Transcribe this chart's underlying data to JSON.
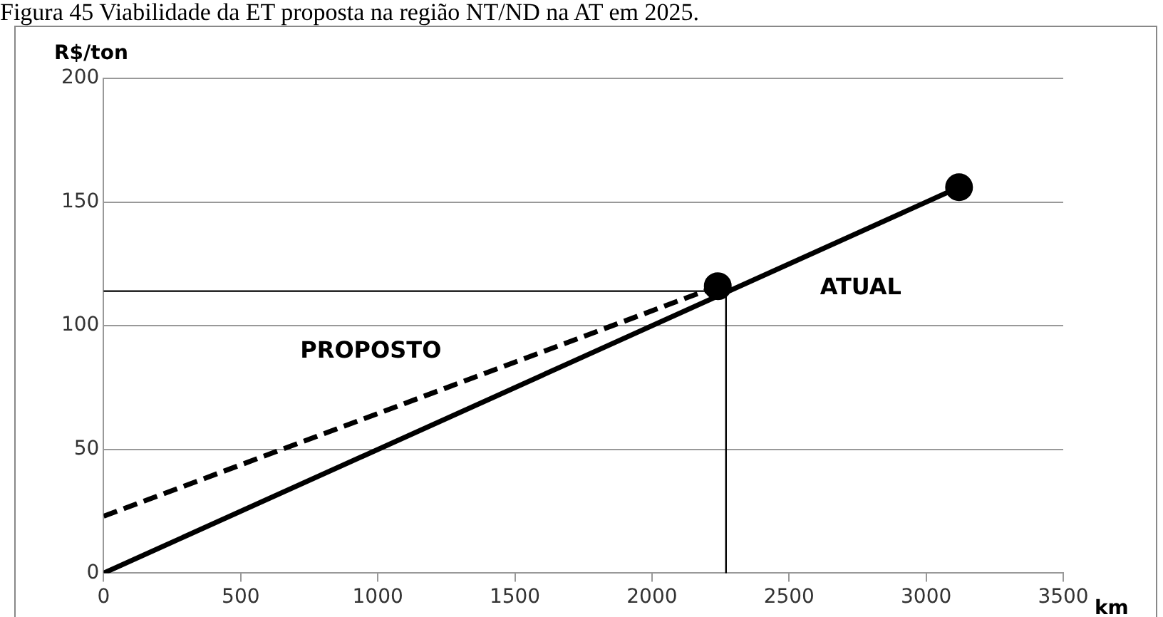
{
  "chart_data": {
    "type": "line",
    "title": "Figura 45 Viabilidade da ET proposta na região NT/ND na AT em 2025.",
    "xlabel": "km",
    "ylabel": "R$/ton",
    "series": [
      {
        "name": "ATUAL",
        "color": "#000000",
        "x": [
          0,
          3120
        ],
        "values": [
          0,
          156
        ],
        "line_style": "solid"
      },
      {
        "name": "PROPOSTO",
        "color": "#000000",
        "x": [
          0,
          2240
        ],
        "values": [
          23,
          116
        ],
        "line_style": "dashed"
      }
    ],
    "xlim": [
      0,
      3500
    ],
    "xticks": [
      0,
      500,
      1000,
      1500,
      2000,
      2500,
      3000,
      3500
    ],
    "ylim": [
      0,
      200
    ],
    "yticks": [
      0,
      50,
      100,
      150,
      200
    ],
    "ref_lines": [
      {
        "axis": "y",
        "value": 114,
        "color": "#000000"
      },
      {
        "axis": "x",
        "value": 2270,
        "color": "#000000"
      }
    ],
    "grid": "y",
    "legend": false,
    "marker": "circle"
  }
}
